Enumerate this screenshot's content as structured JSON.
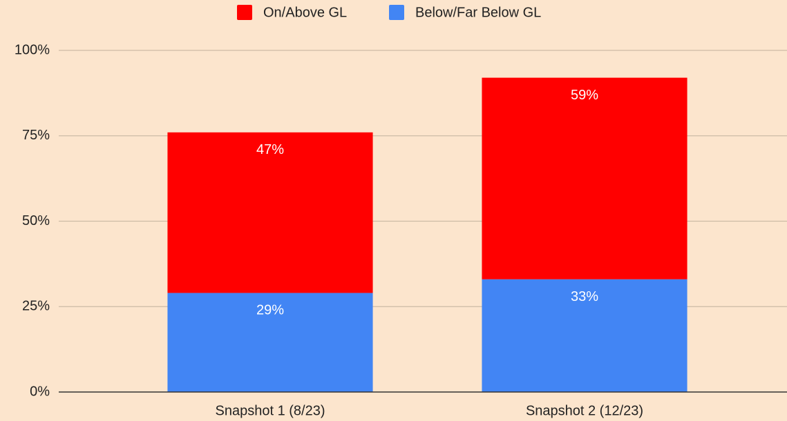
{
  "chart_data": {
    "type": "stacked_bar",
    "categories": [
      "Snapshot 1 (8/23)",
      "Snapshot 2 (12/23)"
    ],
    "series": [
      {
        "name": "On/Above GL",
        "color": "#ff0000",
        "values": [
          47,
          59
        ],
        "value_labels": [
          "47%",
          "59%"
        ]
      },
      {
        "name": "Below/Far Below GL",
        "color": "#4285f4",
        "values": [
          29,
          33
        ],
        "value_labels": [
          "29%",
          "33%"
        ]
      }
    ],
    "ylim": [
      0,
      100
    ],
    "yticks": [
      {
        "value": 0,
        "label": "0%"
      },
      {
        "value": 25,
        "label": "25%"
      },
      {
        "value": 50,
        "label": "50%"
      },
      {
        "value": 75,
        "label": "75%"
      },
      {
        "value": 100,
        "label": "100%"
      }
    ],
    "grid": true,
    "legend": "top"
  }
}
